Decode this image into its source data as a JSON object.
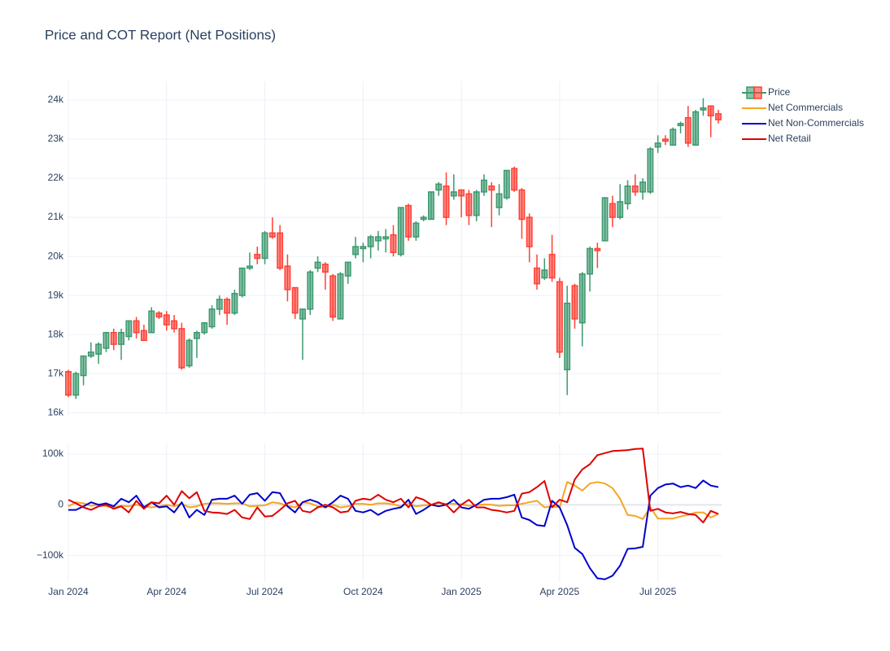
{
  "chart_data": [
    {
      "type": "candlestick",
      "title": "Price and COT Report (Net Positions)",
      "series": [
        {
          "name": "Price",
          "increasing_color": "#3d9970",
          "decreasing_color": "#ff4136",
          "open": [
            17050,
            16450,
            16950,
            17450,
            17500,
            17650,
            18050,
            17750,
            17950,
            18350,
            18100,
            18050,
            18550,
            18500,
            18350,
            18150,
            17200,
            17900,
            18050,
            18200,
            18650,
            18900,
            18550,
            19000,
            19700,
            20050,
            19950,
            20600,
            20600,
            19750,
            19200,
            18400,
            18650,
            19700,
            19800,
            19500,
            18400,
            19500,
            20050,
            20200,
            20250,
            20400,
            20450,
            20550,
            20050,
            21300,
            20500,
            20950,
            20950,
            21700,
            21800,
            21550,
            21700,
            21600,
            21050,
            21650,
            21800,
            21250,
            21500,
            22250,
            21700,
            21000,
            19700,
            19450,
            20050,
            19350,
            17100,
            19250,
            18300,
            19550,
            20200,
            20400,
            21350,
            21000,
            21350,
            21800,
            21650,
            21650,
            22800,
            23000,
            22850,
            23350,
            23550,
            22850,
            23750,
            23850,
            23650
          ],
          "high": [
            17100,
            17050,
            17450,
            17800,
            17800,
            18050,
            18150,
            18150,
            18350,
            18450,
            18250,
            18700,
            18600,
            18600,
            18500,
            18300,
            17900,
            18100,
            18300,
            18750,
            19000,
            18950,
            19150,
            19700,
            20100,
            20250,
            20650,
            21000,
            20800,
            20050,
            19200,
            18650,
            19650,
            20000,
            19850,
            19550,
            19600,
            19850,
            20500,
            20350,
            20550,
            20650,
            20700,
            20800,
            21250,
            21350,
            20900,
            21050,
            21650,
            21900,
            22150,
            22100,
            21700,
            21700,
            21700,
            22100,
            21900,
            21850,
            22200,
            22300,
            21750,
            21100,
            20050,
            19950,
            20550,
            19450,
            19250,
            19300,
            19600,
            20250,
            20350,
            21500,
            21550,
            21850,
            21950,
            22100,
            22000,
            22800,
            23100,
            23100,
            23300,
            23450,
            23850,
            23750,
            24050,
            23850,
            23750
          ],
          "low": [
            16400,
            16350,
            16700,
            17400,
            17250,
            17550,
            17600,
            17350,
            17850,
            17900,
            17850,
            18050,
            18400,
            18100,
            18050,
            17100,
            17150,
            17400,
            18000,
            18150,
            18500,
            18250,
            18500,
            18950,
            19650,
            19800,
            19800,
            20450,
            19650,
            18850,
            18400,
            17350,
            18500,
            19600,
            19150,
            18350,
            18400,
            19300,
            19950,
            19850,
            19950,
            20150,
            20100,
            20000,
            20000,
            20400,
            20400,
            20900,
            20950,
            21550,
            20800,
            21450,
            21000,
            20800,
            20900,
            21550,
            20750,
            21050,
            21450,
            21650,
            20450,
            19850,
            19150,
            19400,
            19350,
            17400,
            16450,
            18150,
            17700,
            19100,
            19700,
            20400,
            20750,
            20950,
            21200,
            21550,
            21450,
            21600,
            22650,
            22850,
            22850,
            23150,
            22800,
            22850,
            23600,
            23050,
            23400
          ],
          "close": [
            16450,
            17000,
            17450,
            17550,
            17750,
            18050,
            17750,
            18050,
            18350,
            18050,
            17850,
            18600,
            18450,
            18250,
            18150,
            17150,
            17850,
            18050,
            18300,
            18650,
            18900,
            18550,
            19050,
            19700,
            19750,
            19950,
            20600,
            20500,
            19700,
            19150,
            18550,
            18650,
            19600,
            19850,
            19600,
            18450,
            19550,
            19850,
            20250,
            20250,
            20500,
            20500,
            20500,
            20100,
            21250,
            20500,
            20850,
            21000,
            21650,
            21850,
            21000,
            21650,
            21550,
            21050,
            21650,
            21950,
            21700,
            21600,
            22200,
            21700,
            20950,
            20250,
            19300,
            19650,
            19450,
            17550,
            18800,
            18400,
            19550,
            20200,
            20150,
            21500,
            21000,
            21400,
            21800,
            21650,
            21900,
            22750,
            22900,
            22950,
            23250,
            23400,
            22900,
            23700,
            23800,
            23600,
            23500
          ]
        }
      ],
      "ylim": [
        15940,
        24480
      ],
      "yticks": [
        {
          "value": 16000,
          "label": "16k"
        },
        {
          "value": 17000,
          "label": "17k"
        },
        {
          "value": 18000,
          "label": "18k"
        },
        {
          "value": 19000,
          "label": "19k"
        },
        {
          "value": 20000,
          "label": "20k"
        },
        {
          "value": 21000,
          "label": "21k"
        },
        {
          "value": 22000,
          "label": "22k"
        },
        {
          "value": 23000,
          "label": "23k"
        },
        {
          "value": 24000,
          "label": "24k"
        }
      ],
      "grid": true
    },
    {
      "type": "line",
      "categories": [
        "Jan 2024",
        null,
        null,
        null,
        null,
        null,
        null,
        null,
        null,
        null,
        null,
        null,
        null,
        "Apr 2024",
        null,
        null,
        null,
        null,
        null,
        null,
        null,
        null,
        null,
        null,
        null,
        null,
        "Jul 2024",
        null,
        null,
        null,
        null,
        null,
        null,
        null,
        null,
        null,
        null,
        null,
        null,
        "Oct 2024",
        null,
        null,
        null,
        null,
        null,
        null,
        null,
        null,
        null,
        null,
        null,
        null,
        "Jan 2025",
        null,
        null,
        null,
        null,
        null,
        null,
        null,
        null,
        null,
        null,
        null,
        null,
        "Apr 2025",
        null,
        null,
        null,
        null,
        null,
        null,
        null,
        null,
        null,
        null,
        null,
        null,
        "Jul 2025",
        null,
        null,
        null,
        null,
        null,
        null,
        null,
        null
      ],
      "series": [
        {
          "name": "Net Commercials",
          "color": "#f5a623",
          "values": [
            -3000,
            5000,
            3000,
            -2000,
            0,
            -3000,
            -5000,
            -2000,
            -3000,
            0,
            -3000,
            -5000,
            -3000,
            0,
            -3000,
            2000,
            -5000,
            -3000,
            2000,
            3000,
            3000,
            2000,
            3000,
            3000,
            -3000,
            -2000,
            -1000,
            5000,
            3000,
            -2000,
            -5000,
            5000,
            3000,
            -3000,
            -5000,
            0,
            -5000,
            -3000,
            2000,
            2000,
            0,
            3000,
            3000,
            1000,
            -3000,
            2000,
            -3000,
            -1000,
            0,
            3000,
            2000,
            2000,
            1000,
            -2000,
            -1000,
            1000,
            0,
            -2000,
            -1000,
            -1000,
            2000,
            5000,
            8000,
            -5000,
            -3000,
            -5000,
            45000,
            38000,
            28000,
            42000,
            45000,
            42000,
            33000,
            12000,
            -20000,
            -22000,
            -28000,
            -5000,
            -27000,
            -27000,
            -27000,
            -23000,
            -20000,
            -15000,
            -15000,
            -25000,
            -18000
          ]
        },
        {
          "name": "Net Non-Commercials",
          "color": "#0000cc",
          "values": [
            -10000,
            -10000,
            -3000,
            5000,
            0,
            3000,
            -3000,
            12000,
            5000,
            18000,
            -5000,
            5000,
            -5000,
            -3000,
            -15000,
            5000,
            -25000,
            -10000,
            -20000,
            10000,
            12000,
            12000,
            18000,
            2000,
            20000,
            23000,
            8000,
            25000,
            23000,
            -3000,
            -15000,
            5000,
            10000,
            5000,
            -5000,
            5000,
            18000,
            12000,
            -12000,
            -15000,
            -10000,
            -20000,
            -12000,
            -8000,
            -5000,
            10000,
            -18000,
            -10000,
            0,
            -3000,
            0,
            10000,
            -5000,
            -8000,
            0,
            10000,
            12000,
            12000,
            15000,
            20000,
            -25000,
            -30000,
            -40000,
            -42000,
            8000,
            -5000,
            -40000,
            -85000,
            -97000,
            -125000,
            -145000,
            -147000,
            -140000,
            -120000,
            -87000,
            -86000,
            -83000,
            18000,
            33000,
            40000,
            42000,
            35000,
            38000,
            33000,
            48000,
            38000,
            35000
          ]
        },
        {
          "name": "Net Retail",
          "color": "#e00000",
          "values": [
            10000,
            3000,
            -5000,
            -10000,
            -3000,
            0,
            -8000,
            -3000,
            -15000,
            8000,
            -8000,
            5000,
            3000,
            18000,
            0,
            27000,
            13000,
            25000,
            -12000,
            -15000,
            -16000,
            -18000,
            -10000,
            -25000,
            -28000,
            -5000,
            -23000,
            -22000,
            -10000,
            3000,
            8000,
            -12000,
            -15000,
            -5000,
            0,
            -5000,
            -15000,
            -13000,
            8000,
            12000,
            10000,
            20000,
            10000,
            5000,
            12000,
            -5000,
            15000,
            10000,
            0,
            5000,
            0,
            -15000,
            0,
            10000,
            -5000,
            -5000,
            -10000,
            -12000,
            -15000,
            -12000,
            22000,
            25000,
            35000,
            47000,
            -5000,
            10000,
            5000,
            50000,
            70000,
            80000,
            98000,
            102000,
            106000,
            107000,
            108000,
            110000,
            111000,
            -12000,
            -8000,
            -15000,
            -17000,
            -14000,
            -18000,
            -20000,
            -35000,
            -12000,
            -18000
          ]
        }
      ],
      "ylim": [
        -152000,
        121000
      ],
      "yticks": [
        {
          "value": -100000,
          "label": "−100k"
        },
        0,
        {
          "value": 100000,
          "label": "100k"
        }
      ],
      "grid": true
    }
  ]
}
